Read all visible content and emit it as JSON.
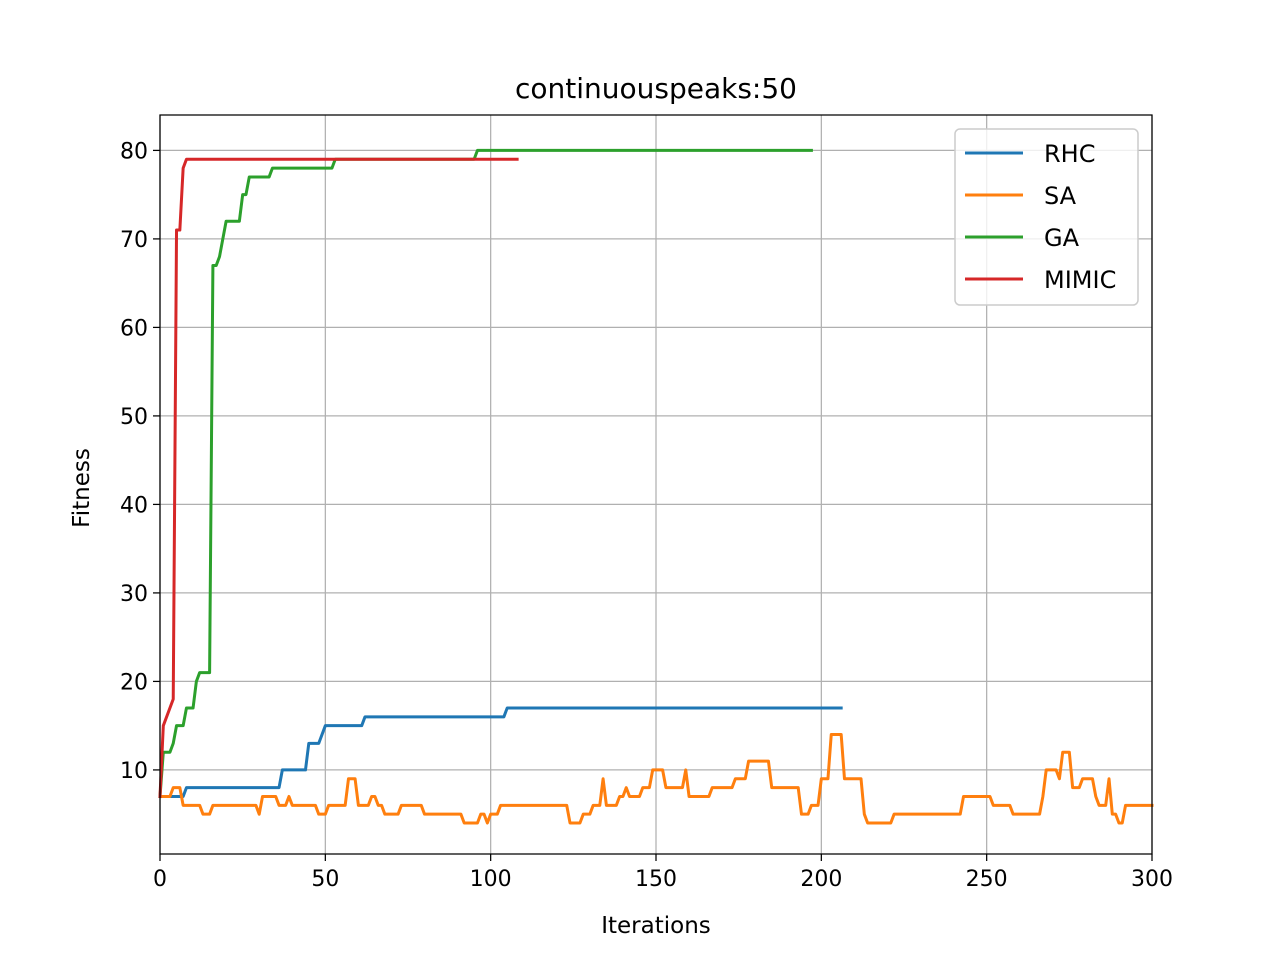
{
  "chart_data": {
    "type": "line",
    "title": "continuouspeaks:50",
    "xlabel": "Iterations",
    "ylabel": "Fitness",
    "xlim": [
      0,
      300
    ],
    "ylim": [
      0.5,
      84
    ],
    "xticks": [
      0,
      50,
      100,
      150,
      200,
      250,
      300
    ],
    "yticks": [
      10,
      20,
      30,
      40,
      50,
      60,
      70,
      80
    ],
    "grid": true,
    "legend_position": "upper right",
    "series": [
      {
        "name": "RHC",
        "color": "#1f77b4",
        "points": [
          [
            0,
            7
          ],
          [
            7,
            7
          ],
          [
            8,
            8
          ],
          [
            35,
            8
          ],
          [
            36,
            8
          ],
          [
            37,
            10
          ],
          [
            44,
            10
          ],
          [
            45,
            13
          ],
          [
            48,
            13
          ],
          [
            50,
            15
          ],
          [
            61,
            15
          ],
          [
            62,
            16
          ],
          [
            104,
            16
          ],
          [
            105,
            17
          ],
          [
            206,
            17
          ]
        ]
      },
      {
        "name": "SA",
        "color": "#ff7f0e",
        "points": [
          [
            0,
            7
          ],
          [
            3,
            7
          ],
          [
            4,
            8
          ],
          [
            6,
            8
          ],
          [
            7,
            6
          ],
          [
            12,
            6
          ],
          [
            13,
            5
          ],
          [
            15,
            5
          ],
          [
            16,
            6
          ],
          [
            29,
            6
          ],
          [
            30,
            5
          ],
          [
            31,
            7
          ],
          [
            35,
            7
          ],
          [
            36,
            6
          ],
          [
            38,
            6
          ],
          [
            39,
            7
          ],
          [
            40,
            6
          ],
          [
            47,
            6
          ],
          [
            48,
            5
          ],
          [
            50,
            5
          ],
          [
            51,
            6
          ],
          [
            56,
            6
          ],
          [
            57,
            9
          ],
          [
            59,
            9
          ],
          [
            60,
            6
          ],
          [
            63,
            6
          ],
          [
            64,
            7
          ],
          [
            65,
            7
          ],
          [
            66,
            6
          ],
          [
            67,
            6
          ],
          [
            68,
            5
          ],
          [
            72,
            5
          ],
          [
            73,
            6
          ],
          [
            79,
            6
          ],
          [
            80,
            5
          ],
          [
            91,
            5
          ],
          [
            92,
            4
          ],
          [
            96,
            4
          ],
          [
            97,
            5
          ],
          [
            98,
            5
          ],
          [
            99,
            4
          ],
          [
            100,
            5
          ],
          [
            102,
            5
          ],
          [
            103,
            6
          ],
          [
            123,
            6
          ],
          [
            124,
            4
          ],
          [
            127,
            4
          ],
          [
            128,
            5
          ],
          [
            130,
            5
          ],
          [
            131,
            6
          ],
          [
            133,
            6
          ],
          [
            134,
            9
          ],
          [
            135,
            6
          ],
          [
            138,
            6
          ],
          [
            139,
            7
          ],
          [
            140,
            7
          ],
          [
            141,
            8
          ],
          [
            142,
            7
          ],
          [
            145,
            7
          ],
          [
            146,
            8
          ],
          [
            148,
            8
          ],
          [
            149,
            10
          ],
          [
            152,
            10
          ],
          [
            153,
            8
          ],
          [
            158,
            8
          ],
          [
            159,
            10
          ],
          [
            160,
            7
          ],
          [
            166,
            7
          ],
          [
            167,
            8
          ],
          [
            173,
            8
          ],
          [
            174,
            9
          ],
          [
            177,
            9
          ],
          [
            178,
            11
          ],
          [
            184,
            11
          ],
          [
            185,
            8
          ],
          [
            193,
            8
          ],
          [
            194,
            5
          ],
          [
            196,
            5
          ],
          [
            197,
            6
          ],
          [
            199,
            6
          ],
          [
            200,
            9
          ],
          [
            202,
            9
          ],
          [
            203,
            14
          ],
          [
            206,
            14
          ],
          [
            207,
            9
          ],
          [
            212,
            9
          ],
          [
            213,
            5
          ],
          [
            214,
            4
          ],
          [
            221,
            4
          ],
          [
            222,
            5
          ],
          [
            242,
            5
          ],
          [
            243,
            7
          ],
          [
            251,
            7
          ],
          [
            252,
            6
          ],
          [
            257,
            6
          ],
          [
            258,
            5
          ],
          [
            266,
            5
          ],
          [
            267,
            7
          ],
          [
            268,
            10
          ],
          [
            271,
            10
          ],
          [
            272,
            9
          ],
          [
            273,
            12
          ],
          [
            275,
            12
          ],
          [
            276,
            8
          ],
          [
            278,
            8
          ],
          [
            279,
            9
          ],
          [
            282,
            9
          ],
          [
            283,
            7
          ],
          [
            284,
            6
          ],
          [
            286,
            6
          ],
          [
            287,
            9
          ],
          [
            288,
            5
          ],
          [
            289,
            5
          ],
          [
            290,
            4
          ],
          [
            291,
            4
          ],
          [
            292,
            6
          ],
          [
            300,
            6
          ]
        ]
      },
      {
        "name": "GA",
        "color": "#2ca02c",
        "points": [
          [
            0,
            7
          ],
          [
            1,
            12
          ],
          [
            3,
            12
          ],
          [
            4,
            13
          ],
          [
            5,
            15
          ],
          [
            7,
            15
          ],
          [
            8,
            17
          ],
          [
            10,
            17
          ],
          [
            11,
            20
          ],
          [
            12,
            21
          ],
          [
            15,
            21
          ],
          [
            16,
            67
          ],
          [
            17,
            67
          ],
          [
            18,
            68
          ],
          [
            19,
            70
          ],
          [
            20,
            72
          ],
          [
            24,
            72
          ],
          [
            25,
            75
          ],
          [
            26,
            75
          ],
          [
            27,
            77
          ],
          [
            33,
            77
          ],
          [
            34,
            78
          ],
          [
            52,
            78
          ],
          [
            53,
            79
          ],
          [
            95,
            79
          ],
          [
            96,
            80
          ],
          [
            197,
            80
          ]
        ]
      },
      {
        "name": "MIMIC",
        "color": "#d62728",
        "points": [
          [
            0,
            7
          ],
          [
            1,
            15
          ],
          [
            4,
            18
          ],
          [
            5,
            71
          ],
          [
            6,
            71
          ],
          [
            7,
            78
          ],
          [
            8,
            79
          ],
          [
            108,
            79
          ]
        ]
      }
    ]
  }
}
